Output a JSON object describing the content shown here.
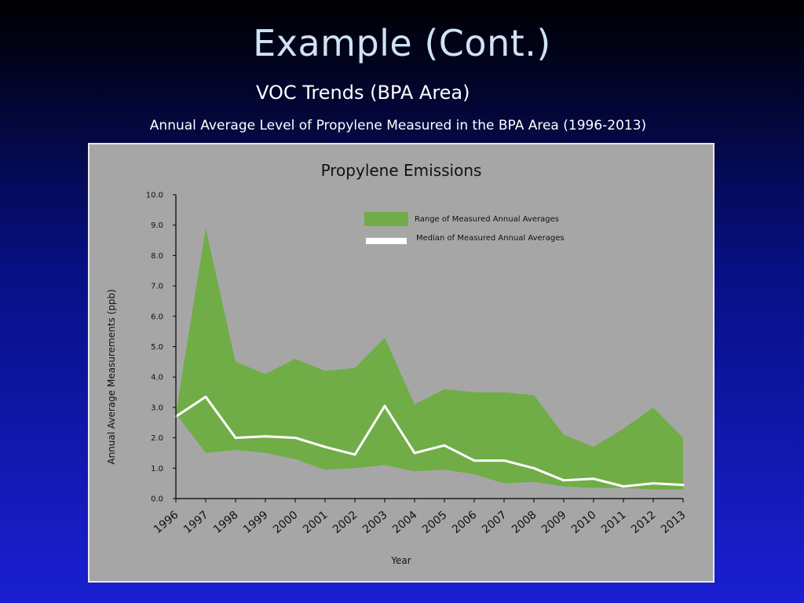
{
  "slide": {
    "title": "Example (Cont.)",
    "subtitle": "VOC Trends (BPA Area)",
    "caption": "Annual Average Level of Propylene Measured in the BPA Area (1996-2013)"
  },
  "colors": {
    "range_fill": "#70ad47",
    "median_line": "#ffffff",
    "panel_background": "#a6a6a6"
  },
  "chart_data": {
    "type": "area",
    "title": "Propylene Emissions",
    "xlabel": "Year",
    "ylabel": "Annual Average Measurements (ppb)",
    "ylim": [
      0,
      10
    ],
    "y_ticks": [
      "0.0",
      "1.0",
      "2.0",
      "3.0",
      "4.0",
      "5.0",
      "6.0",
      "7.0",
      "8.0",
      "9.0",
      "10.0"
    ],
    "categories": [
      "1996",
      "1997",
      "1998",
      "1999",
      "2000",
      "2001",
      "2002",
      "2003",
      "2004",
      "2005",
      "2006",
      "2007",
      "2008",
      "2009",
      "2010",
      "2011",
      "2012",
      "2013"
    ],
    "grid": false,
    "legend_position": "top-right",
    "series": [
      {
        "name": "Range of Measured Annual Averages",
        "kind": "range",
        "color": "#70ad47",
        "upper": [
          2.8,
          8.9,
          4.5,
          4.1,
          4.6,
          4.2,
          4.3,
          5.3,
          3.1,
          3.6,
          3.5,
          3.5,
          3.4,
          2.1,
          1.7,
          2.3,
          3.0,
          2.0
        ],
        "lower": [
          2.8,
          1.5,
          1.6,
          1.5,
          1.3,
          0.95,
          1.0,
          1.1,
          0.9,
          0.95,
          0.8,
          0.5,
          0.55,
          0.4,
          0.35,
          0.35,
          0.3,
          0.3
        ]
      },
      {
        "name": "Median of Measured Annual Averages",
        "kind": "line",
        "color": "#ffffff",
        "values": [
          2.7,
          3.35,
          2.0,
          2.05,
          2.0,
          1.7,
          1.45,
          3.05,
          1.5,
          1.75,
          1.25,
          1.25,
          1.0,
          0.6,
          0.65,
          0.4,
          0.5,
          0.45
        ]
      }
    ]
  }
}
